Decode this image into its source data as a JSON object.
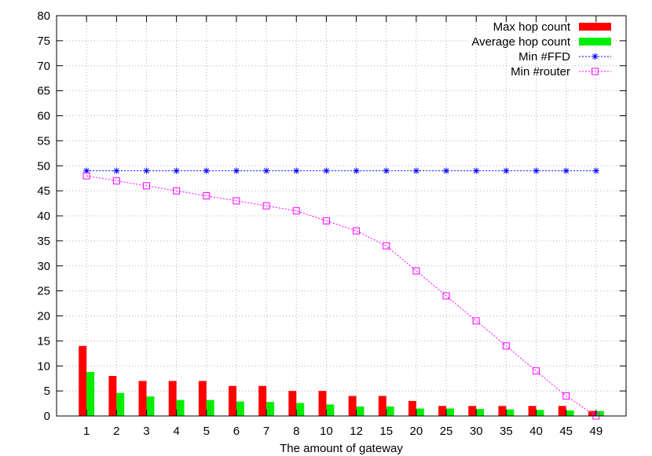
{
  "chart_data": {
    "type": "bar",
    "title": "",
    "xlabel": "The amount of gateway",
    "ylabel": "",
    "categories": [
      "1",
      "2",
      "3",
      "4",
      "5",
      "6",
      "7",
      "8",
      "10",
      "12",
      "15",
      "20",
      "25",
      "30",
      "35",
      "40",
      "45",
      "49"
    ],
    "ylim": [
      0,
      80
    ],
    "yticks": [
      0,
      5,
      10,
      15,
      20,
      25,
      30,
      35,
      40,
      45,
      50,
      55,
      60,
      65,
      70,
      75,
      80
    ],
    "grid": true,
    "legend_position": "top-right",
    "series": [
      {
        "name": "Max hop count",
        "kind": "bar",
        "color": "#ff0000",
        "values": [
          14,
          8,
          7,
          7,
          7,
          6,
          6,
          5,
          5,
          4,
          4,
          3,
          2,
          2,
          2,
          2,
          2,
          1
        ]
      },
      {
        "name": "Average hop count",
        "kind": "bar",
        "color": "#00ee00",
        "values": [
          8.8,
          4.6,
          3.9,
          3.2,
          3.2,
          2.9,
          2.8,
          2.6,
          2.3,
          1.9,
          1.9,
          1.5,
          1.5,
          1.4,
          1.3,
          1.2,
          1.1,
          1
        ]
      },
      {
        "name": "Min #FFD",
        "kind": "line",
        "marker": "star",
        "line_style": "dotted",
        "color": "#0000ff",
        "values": [
          49,
          49,
          49,
          49,
          49,
          49,
          49,
          49,
          49,
          49,
          49,
          49,
          49,
          49,
          49,
          49,
          49,
          49
        ]
      },
      {
        "name": "Min #router",
        "kind": "line",
        "marker": "open-square",
        "line_style": "dotted",
        "color": "#ff00ff",
        "values": [
          48,
          47,
          46,
          45,
          44,
          43,
          42,
          41,
          39,
          37,
          34,
          29,
          24,
          19,
          14,
          9,
          4,
          0
        ]
      }
    ]
  }
}
